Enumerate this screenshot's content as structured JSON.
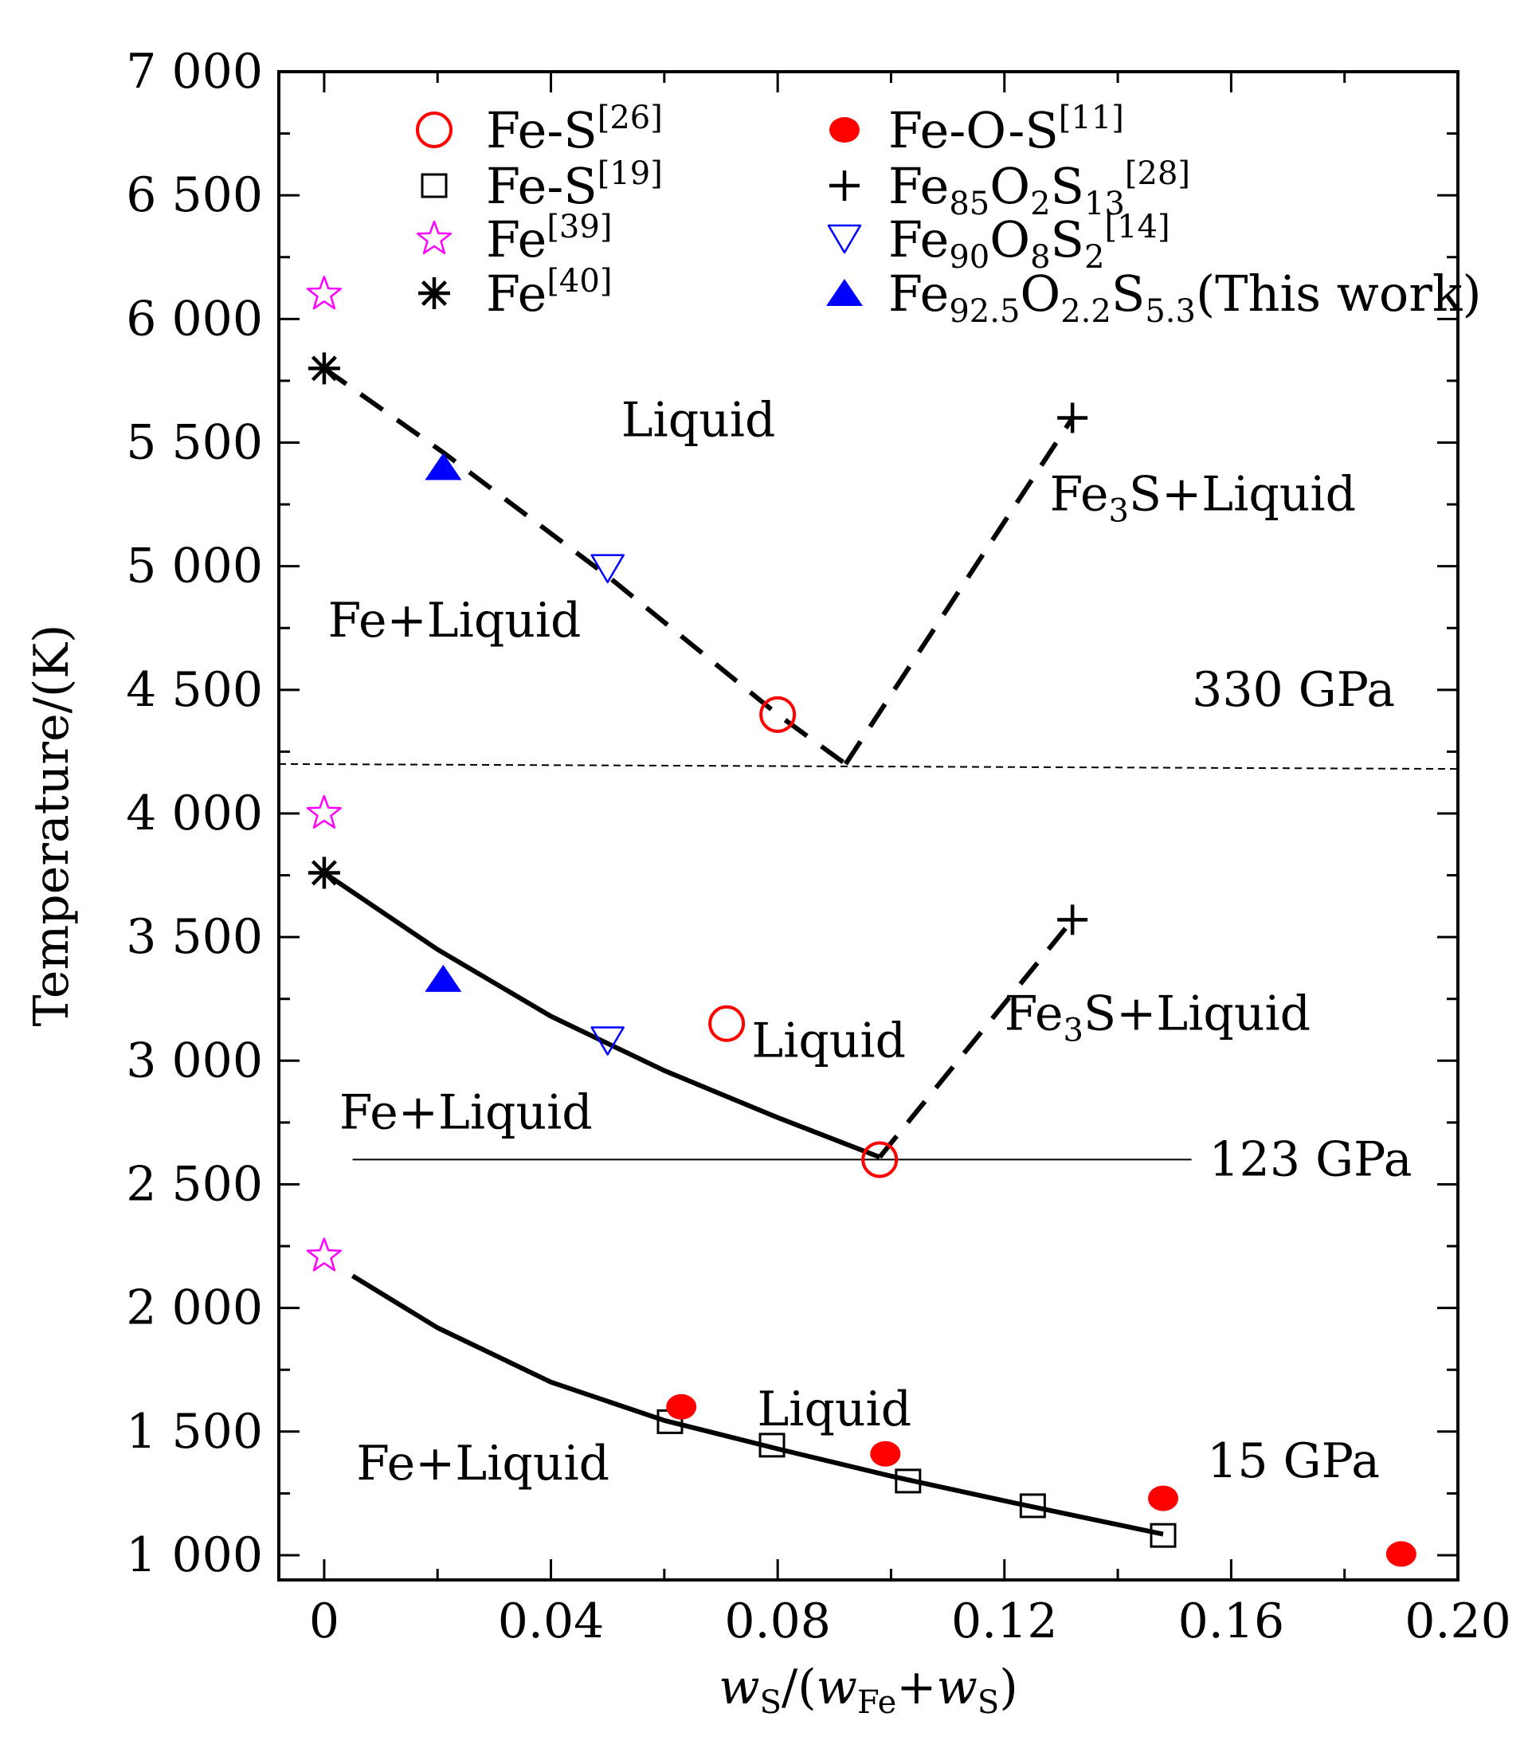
{
  "chart_data": {
    "type": "scatter",
    "title": "",
    "xlabel": "w_S/(w_Fe+w_S)",
    "xlabel_parts": {
      "w1": "w",
      "s1": "S",
      "mid": "/(",
      "w2": "w",
      "s2": "Fe",
      "plus": "+",
      "w3": "w",
      "s3": "S",
      "end": ")"
    },
    "ylabel": "Temperature/(K)",
    "xlim": [
      -0.008,
      0.2
    ],
    "ylim": [
      900,
      7000
    ],
    "xticks": [
      0,
      0.04,
      0.08,
      0.12,
      0.16,
      0.2
    ],
    "xtick_labels": [
      "0",
      "0.04",
      "0.08",
      "0.12",
      "0.16",
      "0.20"
    ],
    "yticks": [
      1000,
      1500,
      2000,
      2500,
      3000,
      3500,
      4000,
      4500,
      5000,
      5500,
      6000,
      6500,
      7000
    ],
    "ytick_labels": [
      "1 000",
      "1 500",
      "2 000",
      "2 500",
      "3 000",
      "3 500",
      "4 000",
      "4 500",
      "5 000",
      "5 500",
      "6 000",
      "6 500",
      "7 000"
    ],
    "legend_position": "top",
    "legend": [
      {
        "key": "fes26",
        "base": "Fe-S",
        "ref": "[26]",
        "marker": "circle-open",
        "color": "#ff0000"
      },
      {
        "key": "fes19",
        "base": "Fe-S",
        "ref": "[19]",
        "marker": "square-open",
        "color": "#000000"
      },
      {
        "key": "fe39",
        "base": "Fe",
        "ref": "[39]",
        "marker": "star-open",
        "color": "#ff00ff"
      },
      {
        "key": "fe40",
        "base": "Fe",
        "ref": "[40]",
        "marker": "asterisk",
        "color": "#000000"
      },
      {
        "key": "feos11",
        "base": "Fe-O-S",
        "ref": "[11]",
        "marker": "circle-filled",
        "color": "#ff0000"
      },
      {
        "key": "fe85",
        "parts": [
          [
            "Fe",
            ""
          ],
          [
            "85",
            "sub"
          ],
          [
            "O",
            ""
          ],
          [
            "2",
            "sub"
          ],
          [
            "S",
            ""
          ],
          [
            "13",
            "sub"
          ],
          [
            "[28]",
            "sup"
          ]
        ],
        "marker": "plus",
        "color": "#000000"
      },
      {
        "key": "fe90",
        "parts": [
          [
            "Fe",
            ""
          ],
          [
            "90",
            "sub"
          ],
          [
            "O",
            ""
          ],
          [
            "8",
            "sub"
          ],
          [
            "S",
            ""
          ],
          [
            "2",
            "sub"
          ],
          [
            "[14]",
            "sup"
          ]
        ],
        "marker": "triangle-down-open",
        "color": "#0000ff"
      },
      {
        "key": "thiswork",
        "parts": [
          [
            "Fe",
            ""
          ],
          [
            "92.5",
            "sub"
          ],
          [
            "O",
            ""
          ],
          [
            "2.2",
            "sub"
          ],
          [
            "S",
            ""
          ],
          [
            "5.3",
            "sub"
          ],
          [
            "(This work)",
            ""
          ]
        ],
        "marker": "triangle-up-filled",
        "color": "#0000ff"
      }
    ],
    "series": [
      {
        "key": "fes26",
        "name": "Fe-S[26]",
        "points": [
          [
            0.08,
            4400
          ],
          [
            0.071,
            3150
          ],
          [
            0.098,
            2600
          ]
        ]
      },
      {
        "key": "fes19",
        "name": "Fe-S[19]",
        "points": [
          [
            0.061,
            1540
          ],
          [
            0.079,
            1445
          ],
          [
            0.103,
            1300
          ],
          [
            0.125,
            1200
          ],
          [
            0.148,
            1080
          ]
        ]
      },
      {
        "key": "fe39",
        "name": "Fe[39]",
        "points": [
          [
            0.0,
            6100
          ],
          [
            0.0,
            4000
          ],
          [
            0.0,
            2210
          ]
        ]
      },
      {
        "key": "fe40",
        "name": "Fe[40]",
        "points": [
          [
            0.0,
            5800
          ],
          [
            0.0,
            3760
          ]
        ]
      },
      {
        "key": "feos11",
        "name": "Fe-O-S[11]",
        "points": [
          [
            0.063,
            1600
          ],
          [
            0.099,
            1410
          ],
          [
            0.148,
            1230
          ],
          [
            0.19,
            1005
          ]
        ]
      },
      {
        "key": "fe85",
        "name": "Fe85O2S13[28]",
        "points": [
          [
            0.132,
            5600
          ],
          [
            0.132,
            3570
          ]
        ]
      },
      {
        "key": "fe90",
        "name": "Fe90O8S2[14]",
        "points": [
          [
            0.05,
            4990
          ],
          [
            0.05,
            3080
          ]
        ]
      },
      {
        "key": "thiswork",
        "name": "Fe92.5O2.2S5.3(This work)",
        "points": [
          [
            0.021,
            5400
          ],
          [
            0.021,
            3330
          ]
        ]
      }
    ],
    "curves": [
      {
        "name": "330 GPa liquidus (Fe side)",
        "style": "dashed",
        "points": [
          [
            0.0,
            5800
          ],
          [
            0.021,
            5460
          ],
          [
            0.05,
            4960
          ],
          [
            0.08,
            4400
          ],
          [
            0.092,
            4200
          ]
        ]
      },
      {
        "name": "330 GPa liquidus (Fe3S side)",
        "style": "dashed",
        "points": [
          [
            0.092,
            4200
          ],
          [
            0.132,
            5600
          ]
        ]
      },
      {
        "name": "330 GPa eutectic",
        "style": "dotted-thin",
        "points": [
          [
            -0.008,
            4200
          ],
          [
            0.2,
            4180
          ]
        ]
      },
      {
        "name": "123 GPa liquidus (Fe side)",
        "style": "solid",
        "points": [
          [
            0.0,
            3760
          ],
          [
            0.02,
            3450
          ],
          [
            0.04,
            3180
          ],
          [
            0.06,
            2960
          ],
          [
            0.08,
            2770
          ],
          [
            0.098,
            2610
          ]
        ]
      },
      {
        "name": "123 GPa liquidus (Fe3S side)",
        "style": "dashed",
        "points": [
          [
            0.098,
            2610
          ],
          [
            0.132,
            3570
          ]
        ]
      },
      {
        "name": "123 GPa eutectic",
        "style": "solid-thin",
        "points": [
          [
            0.005,
            2600
          ],
          [
            0.153,
            2600
          ]
        ]
      },
      {
        "name": "15 GPa liquidus",
        "style": "solid",
        "points": [
          [
            0.005,
            2130
          ],
          [
            0.02,
            1920
          ],
          [
            0.04,
            1700
          ],
          [
            0.06,
            1545
          ],
          [
            0.08,
            1430
          ],
          [
            0.1,
            1320
          ],
          [
            0.12,
            1220
          ],
          [
            0.148,
            1085
          ]
        ]
      }
    ],
    "annotations": [
      {
        "key": "liq330",
        "parts": [
          [
            "Liquid",
            ""
          ]
        ],
        "x": 0.066,
        "y": 5590
      },
      {
        "key": "fe3s330",
        "parts": [
          [
            "Fe",
            ""
          ],
          [
            "3",
            "sub"
          ],
          [
            "S+Liquid",
            ""
          ]
        ],
        "x": 0.155,
        "y": 5290
      },
      {
        "key": "feliq330",
        "parts": [
          [
            "Fe+Liquid",
            ""
          ]
        ],
        "x": 0.023,
        "y": 4780
      },
      {
        "key": "p330",
        "parts": [
          [
            "330 GPa",
            ""
          ]
        ],
        "x": 0.171,
        "y": 4500
      },
      {
        "key": "liq123",
        "parts": [
          [
            "Liquid",
            ""
          ]
        ],
        "x": 0.089,
        "y": 3080
      },
      {
        "key": "fe3s123",
        "parts": [
          [
            "Fe",
            ""
          ],
          [
            "3",
            "sub"
          ],
          [
            "S+Liquid",
            ""
          ]
        ],
        "x": 0.147,
        "y": 3190
      },
      {
        "key": "feliq123",
        "parts": [
          [
            "Fe+Liquid",
            ""
          ]
        ],
        "x": 0.025,
        "y": 2790
      },
      {
        "key": "p123",
        "parts": [
          [
            "123 GPa",
            ""
          ]
        ],
        "x": 0.174,
        "y": 2600
      },
      {
        "key": "liq15",
        "parts": [
          [
            "Liquid",
            ""
          ]
        ],
        "x": 0.09,
        "y": 1590
      },
      {
        "key": "feliq15",
        "parts": [
          [
            "Fe+Liquid",
            ""
          ]
        ],
        "x": 0.028,
        "y": 1370
      },
      {
        "key": "p15",
        "parts": [
          [
            "15 GPa",
            ""
          ]
        ],
        "x": 0.171,
        "y": 1380
      }
    ]
  }
}
